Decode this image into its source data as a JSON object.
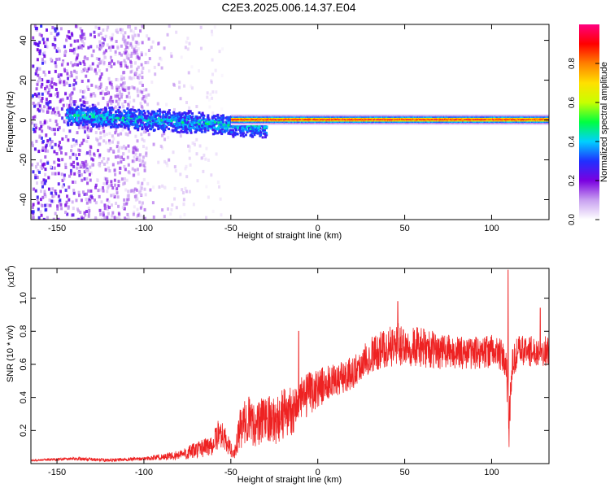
{
  "figure": {
    "title": "C2E3.2025.006.14.37.E04"
  },
  "chart_data": [
    {
      "type": "heatmap",
      "xlabel": "Height of straight line (km)",
      "ylabel": "Frequency (Hz)",
      "xlim": [
        -165,
        133
      ],
      "ylim": [
        -50,
        48
      ],
      "xticks": [
        -150,
        -100,
        -50,
        0,
        50,
        100
      ],
      "yticks": [
        40,
        20,
        0,
        -20,
        -40
      ],
      "colorbar": {
        "label": "Normalized spectral amplitude",
        "range": [
          0,
          1
        ],
        "ticks": [
          0.0,
          0.2,
          0.4,
          0.6,
          0.8
        ],
        "tick_labels": [
          "0.0",
          "0.2",
          "0.4",
          "0.6",
          "0.8"
        ],
        "colors": [
          "#ffffff",
          "#c8a0f0",
          "#7a00e0",
          "#2030ff",
          "#00d0ff",
          "#00ff40",
          "#c8ff00",
          "#ffe000",
          "#ff8000",
          "#ff0000",
          "#ff0080"
        ]
      },
      "structure": {
        "noise_region_x": [
          -165,
          -55
        ],
        "fuzzy_band": {
          "x": [
            -145,
            -30
          ],
          "y_center": [
            3,
            -3
          ],
          "half_width": 6,
          "amplitude": [
            0.25,
            0.5
          ]
        },
        "clean_band": {
          "x": [
            -50,
            133
          ],
          "y_center": 0.5,
          "half_width": 2.5,
          "peak_amplitude": 0.98
        }
      },
      "grid": false
    },
    {
      "type": "line",
      "xlabel": "Height of straight line (km)",
      "ylabel": "SNR (10 * v/v)",
      "y_scale_label": "(x10",
      "y_scale_exponent": "4",
      "y_scale_suffix": ")",
      "xlim": [
        -165,
        133
      ],
      "ylim": [
        0,
        1.18
      ],
      "xticks": [
        -150,
        -100,
        -50,
        0,
        50,
        100
      ],
      "yticks": [
        0.2,
        0.4,
        0.6,
        0.8,
        1.0
      ],
      "series": [
        {
          "color": "#ee2222",
          "envelope_x": [
            -165,
            -140,
            -120,
            -100,
            -80,
            -70,
            -60,
            -56,
            -52,
            -48,
            -45,
            -40,
            -35,
            -30,
            -25,
            -20,
            -15,
            -10,
            -5,
            0,
            10,
            20,
            25,
            30,
            40,
            45,
            50,
            60,
            70,
            80,
            90,
            100,
            105,
            108,
            110,
            111,
            112,
            115,
            125,
            133
          ],
          "envelope_y": [
            0.02,
            0.03,
            0.02,
            0.03,
            0.05,
            0.08,
            0.12,
            0.2,
            0.12,
            0.05,
            0.2,
            0.28,
            0.22,
            0.3,
            0.25,
            0.3,
            0.32,
            0.38,
            0.42,
            0.46,
            0.5,
            0.55,
            0.6,
            0.66,
            0.7,
            0.72,
            0.72,
            0.7,
            0.68,
            0.67,
            0.67,
            0.68,
            0.66,
            0.6,
            0.3,
            0.45,
            0.6,
            0.68,
            0.68,
            0.68
          ],
          "noise_amplitude": [
            0.005,
            0.01,
            0.01,
            0.01,
            0.03,
            0.05,
            0.07,
            0.1,
            0.06,
            0.03,
            0.12,
            0.14,
            0.14,
            0.15,
            0.14,
            0.16,
            0.15,
            0.14,
            0.13,
            0.12,
            0.1,
            0.1,
            0.1,
            0.11,
            0.12,
            0.13,
            0.13,
            0.12,
            0.11,
            0.1,
            0.1,
            0.1,
            0.1,
            0.1,
            0.25,
            0.1,
            0.1,
            0.1,
            0.09,
            0.09
          ],
          "spikes": [
            {
              "x": 109.5,
              "y": 1.17
            },
            {
              "x": 110.6,
              "y": 0.26
            },
            {
              "x": 128,
              "y": 0.94
            },
            {
              "x": 46,
              "y": 0.98
            },
            {
              "x": -11,
              "y": 0.8
            }
          ]
        }
      ],
      "grid": false
    }
  ]
}
